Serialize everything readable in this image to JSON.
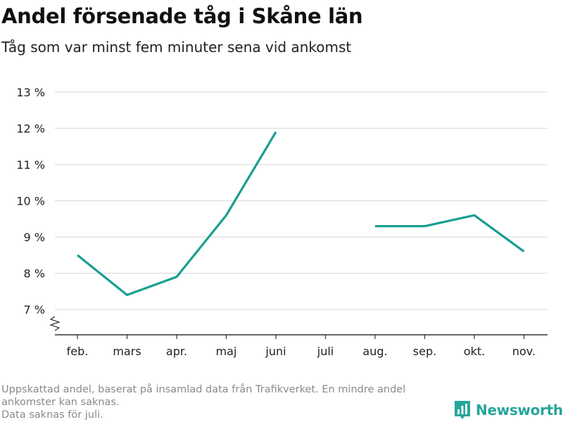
{
  "page": {
    "title": "Andel försenade tåg i Skåne län",
    "subtitle": "Tåg som var minst fem minuter sena vid ankomst",
    "footnote_lines": [
      "Uppskattad andel, baserat på insamlad data från Trafikverket. En mindre andel ankomster kan saknas.",
      "Data saknas för juli."
    ],
    "brand": "Newsworthy"
  },
  "colors": {
    "line": "#1A9E93",
    "grid": "#dddddd",
    "axis": "#333333",
    "brand": "#26A69A"
  },
  "chart_data": {
    "type": "line",
    "title": "Andel försenade tåg i Skåne län",
    "subtitle": "Tåg som var minst fem minuter sena vid ankomst",
    "categories": [
      "feb.",
      "mars",
      "apr.",
      "maj",
      "juni",
      "juli",
      "aug.",
      "sep.",
      "okt.",
      "nov."
    ],
    "values": [
      8.5,
      7.4,
      7.9,
      9.6,
      11.9,
      null,
      9.3,
      9.3,
      9.6,
      8.6
    ],
    "yticks": [
      7,
      8,
      9,
      10,
      11,
      12,
      13
    ],
    "ytick_labels": [
      "7 %",
      "8 %",
      "9 %",
      "10 %",
      "11 %",
      "12 %",
      "13 %"
    ],
    "ylim": [
      7,
      13
    ],
    "y_axis_broken": true,
    "grid": "horizontal",
    "xlabel": "",
    "ylabel": ""
  }
}
